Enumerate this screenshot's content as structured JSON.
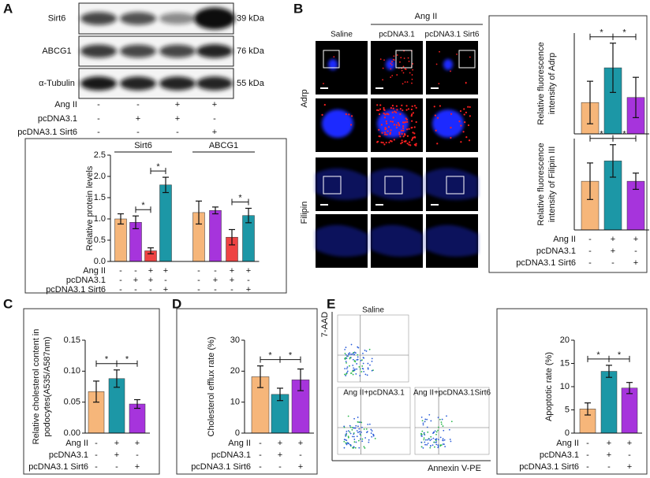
{
  "panel_labels": [
    "A",
    "B",
    "C",
    "D",
    "E"
  ],
  "blot": {
    "rows": [
      {
        "protein": "Sirt6",
        "size": "39 kDa"
      },
      {
        "protein": "ABCG1",
        "size": "76 kDa"
      },
      {
        "protein": "α-Tubulin",
        "size": "55 kDa"
      }
    ],
    "conditions": [
      {
        "label": "Ang II",
        "signs": [
          "-",
          "-",
          "+",
          "+"
        ]
      },
      {
        "label": "pcDNA3.1",
        "signs": [
          "-",
          "+",
          "+",
          "-"
        ]
      },
      {
        "label": "pcDNA3.1 Sirt6",
        "signs": [
          "-",
          "-",
          "-",
          "+"
        ]
      }
    ]
  },
  "imaging": {
    "group": "Ang II",
    "columns": [
      "Saline",
      "pcDNA3.1",
      "pcDNA3.1 Sirt6"
    ],
    "rows": [
      "Adrp",
      "Filipin"
    ]
  },
  "flow": {
    "y_label": "7-AAD",
    "x_label": "Annexin V-PE",
    "plots": [
      "Saline",
      "Ang II+pcDNA3.1",
      "Ang II+pcDNA3.1Sirt6"
    ]
  },
  "chart_data": [
    {
      "type": "bar",
      "ylabel": "Relative protein levels",
      "categories": [
        "Sirt6",
        "ABCG1"
      ],
      "series": [
        {
          "color": "#f6b67a",
          "values": [
            1.0,
            1.15
          ],
          "errors": [
            0.12,
            0.27
          ]
        },
        {
          "color": "#a634dc",
          "values": [
            0.92,
            1.2
          ],
          "errors": [
            0.15,
            0.08
          ]
        },
        {
          "color": "#ee4343",
          "values": [
            0.25,
            0.57
          ],
          "errors": [
            0.07,
            0.18
          ]
        },
        {
          "color": "#1c97a6",
          "values": [
            1.8,
            1.08
          ],
          "errors": [
            0.18,
            0.17
          ]
        }
      ],
      "ylim": [
        0,
        2.5
      ],
      "yticks": [
        {
          "value": 0,
          "label": "0.0"
        },
        0.5,
        {
          "value": 1,
          "label": "1.0"
        },
        1.5,
        {
          "value": 2,
          "label": "2.0"
        },
        2.5
      ],
      "annotations": [
        "*",
        "*",
        "*"
      ],
      "conditions": [
        {
          "label": "Ang II",
          "signs": [
            "-",
            "-",
            "+",
            "+",
            "-",
            "-",
            "+",
            "+"
          ]
        },
        {
          "label": "pcDNA3.1",
          "signs": [
            "-",
            "+",
            "+",
            "-",
            "-",
            "+",
            "+",
            "-"
          ]
        },
        {
          "label": "pcDNA3.1 Sirt6",
          "signs": [
            "-",
            "-",
            "-",
            "+",
            "-",
            "-",
            "-",
            "+"
          ]
        }
      ]
    },
    {
      "type": "bar",
      "ylabel": [
        "Relative fluorescence",
        "intensity of Adrp"
      ],
      "values": [
        5.6,
        11.8,
        6.5
      ],
      "errors": [
        3.8,
        4.4,
        3.6
      ],
      "colors": [
        "#f6b67a",
        "#1c97a6",
        "#a634dc"
      ],
      "ylim": [
        0,
        18
      ],
      "annotations": [
        "*",
        "*"
      ]
    },
    {
      "type": "bar",
      "ylabel": [
        "Relative fluorescence",
        "intensity of Filipin III"
      ],
      "values": [
        24,
        34,
        24
      ],
      "errors": [
        9,
        8,
        4
      ],
      "colors": [
        "#f6b67a",
        "#1c97a6",
        "#a634dc"
      ],
      "ylim": [
        0,
        45
      ],
      "annotations": [
        "*",
        "*"
      ],
      "conditions": [
        {
          "label": "Ang II",
          "signs": [
            "-",
            "+",
            "+"
          ]
        },
        {
          "label": "pcDNA3.1",
          "signs": [
            "-",
            "+",
            "-"
          ]
        },
        {
          "label": "pcDNA3.1 Sirt6",
          "signs": [
            "-",
            "-",
            "+"
          ]
        }
      ]
    },
    {
      "type": "bar",
      "ylabel": [
        "Relative cholesterol content in",
        "podocytes(A535/A587nm)"
      ],
      "values": [
        0.067,
        0.088,
        0.047
      ],
      "errors": [
        0.017,
        0.014,
        0.007
      ],
      "colors": [
        "#f6b67a",
        "#1c97a6",
        "#a634dc"
      ],
      "ylim": [
        0,
        0.15
      ],
      "yticks": [
        {
          "value": 0,
          "label": "0.00"
        },
        0.05,
        {
          "value": 0.1,
          "label": "0.10"
        },
        0.15
      ],
      "annotations": [
        "*",
        "*"
      ],
      "conditions": [
        {
          "label": "Ang II",
          "signs": [
            "-",
            "+",
            "+"
          ]
        },
        {
          "label": "pcDNA3.1",
          "signs": [
            "-",
            "+",
            "-"
          ]
        },
        {
          "label": "pcDNA3.1 Sirt6",
          "signs": [
            "-",
            "-",
            "+"
          ]
        }
      ]
    },
    {
      "type": "bar",
      "ylabel": "Cholesterol efflux rate (%)",
      "values": [
        18.2,
        12.5,
        17.2
      ],
      "errors": [
        3.5,
        2,
        3.5
      ],
      "colors": [
        "#f6b67a",
        "#1c97a6",
        "#a634dc"
      ],
      "ylim": [
        0,
        30
      ],
      "yticks": [
        0,
        10,
        20,
        30
      ],
      "annotations": [
        "*",
        "*"
      ],
      "conditions": [
        {
          "label": "Ang II",
          "signs": [
            "-",
            "+",
            "+"
          ]
        },
        {
          "label": "pcDNA3.1",
          "signs": [
            "-",
            "+",
            "-"
          ]
        },
        {
          "label": "pcDNA3.1 Sirt6",
          "signs": [
            "-",
            "-",
            "+"
          ]
        }
      ]
    },
    {
      "type": "bar",
      "ylabel": "Apoptotic rate (%)",
      "values": [
        5.2,
        13.3,
        9.7
      ],
      "errors": [
        1.3,
        1.3,
        1.2
      ],
      "colors": [
        "#f6b67a",
        "#1c97a6",
        "#a634dc"
      ],
      "ylim": [
        0,
        20
      ],
      "yticks": [
        0,
        5,
        10,
        15,
        20
      ],
      "annotations": [
        "*",
        "*"
      ],
      "conditions": [
        {
          "label": "Ang II",
          "signs": [
            "-",
            "+",
            "+"
          ]
        },
        {
          "label": "pcDNA3.1",
          "signs": [
            "-",
            "+",
            "-"
          ]
        },
        {
          "label": "pcDNA3.1 Sirt6",
          "signs": [
            "-",
            "-",
            "+"
          ]
        }
      ]
    }
  ]
}
